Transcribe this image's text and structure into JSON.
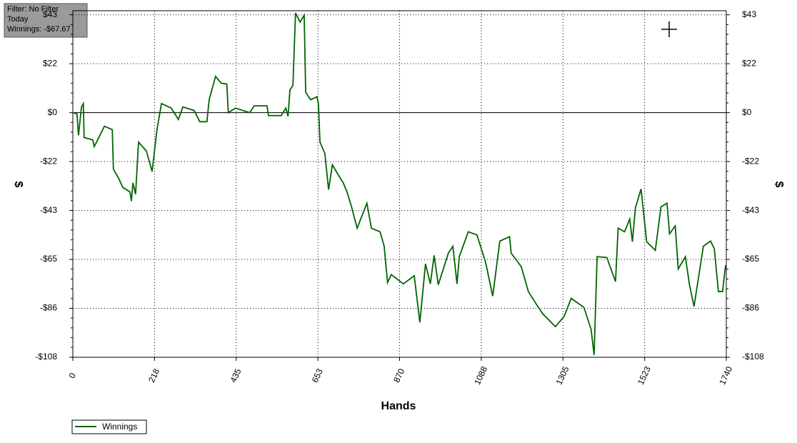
{
  "chart_data": {
    "type": "line",
    "annotations": [
      "Filter: No Filter",
      "Today",
      "Winnings: -$67.67"
    ],
    "x_label": "Hands",
    "y_label": "$",
    "xlim": [
      0,
      1740
    ],
    "ylim": [
      -108,
      45
    ],
    "xticks": [
      0,
      {
        "value": 217.5,
        "label": "218"
      },
      435,
      {
        "value": 652.5,
        "label": "653"
      },
      870,
      {
        "value": 1087.5,
        "label": "1088"
      },
      1305,
      {
        "value": 1522.5,
        "label": "1523"
      },
      1740
    ],
    "yticks": [
      {
        "value": -108,
        "label": "-$108"
      },
      {
        "value": -86.4,
        "label": "-$86"
      },
      {
        "value": -64.8,
        "label": "-$65"
      },
      {
        "value": -43.2,
        "label": "-$43"
      },
      {
        "value": -21.6,
        "label": "-$22"
      },
      {
        "value": 0,
        "label": "$0"
      },
      {
        "value": 21.6,
        "label": "$22"
      },
      {
        "value": 43.2,
        "label": "$43"
      }
    ],
    "grid": true,
    "legend": "bottom-left",
    "x": [
      0,
      11,
      15,
      23,
      28,
      30,
      53,
      57,
      72,
      84,
      105,
      108,
      122,
      133,
      152,
      156,
      160,
      167,
      175,
      196,
      211,
      224,
      236,
      262,
      281,
      293,
      323,
      338,
      357,
      363,
      380,
      395,
      410,
      414,
      433,
      471,
      483,
      517,
      521,
      555,
      567,
      573,
      578,
      586,
      593,
      605,
      616,
      620,
      633,
      650,
      654,
      658,
      671,
      681,
      691,
      705,
      720,
      730,
      742,
      757,
      783,
      795,
      818,
      829,
      838,
      848,
      880,
      909,
      924,
      939,
      952,
      962,
      973,
      1000,
      1012,
      1023,
      1029,
      1053,
      1076,
      1099,
      1118,
      1137,
      1163,
      1167,
      1194,
      1213,
      1232,
      1251,
      1285,
      1308,
      1327,
      1361,
      1380,
      1388,
      1396,
      1422,
      1445,
      1452,
      1469,
      1483,
      1490,
      1498,
      1513,
      1528,
      1551,
      1566,
      1582,
      1589,
      1604,
      1612,
      1631,
      1642,
      1654,
      1679,
      1698,
      1708,
      1719,
      1730,
      1738
    ],
    "series": [
      {
        "name": "Winnings",
        "color": "#006400",
        "values": [
          0,
          -0.6,
          -10,
          2.5,
          4,
          -11,
          -12,
          -15,
          -10,
          -6,
          -7.5,
          -25,
          -29,
          -33,
          -35,
          -39,
          -31,
          -36,
          -13,
          -17,
          -26,
          -7.5,
          4,
          2,
          -3,
          2.5,
          1,
          -4,
          -4,
          5.7,
          16,
          13,
          12.6,
          0,
          2,
          0,
          3,
          3,
          -1.3,
          -1.3,
          2,
          -1.6,
          10,
          12,
          44,
          40,
          43,
          9,
          5.7,
          7,
          4,
          -13,
          -18,
          -34,
          -23,
          -27,
          -31,
          -35,
          -41.5,
          -51,
          -40,
          -51,
          -52.6,
          -59,
          -75,
          -71.5,
          -75.6,
          -72,
          -92.6,
          -66.8,
          -75.6,
          -63,
          -76,
          -62,
          -59,
          -75.6,
          -63.6,
          -52.6,
          -54,
          -66,
          -81,
          -56.7,
          -54.8,
          -62,
          -68,
          -79,
          -84,
          -88.8,
          -94.5,
          -90,
          -82,
          -86,
          -95.7,
          -107,
          -63.6,
          -64,
          -74.6,
          -51,
          -52.6,
          -47,
          -57,
          -42,
          -33.7,
          -57,
          -60.8,
          -41.6,
          -40,
          -53.5,
          -50,
          -69,
          -63.6,
          -76,
          -85.6,
          -59,
          -56.7,
          -60,
          -79,
          -79,
          -67.4
        ]
      }
    ]
  }
}
